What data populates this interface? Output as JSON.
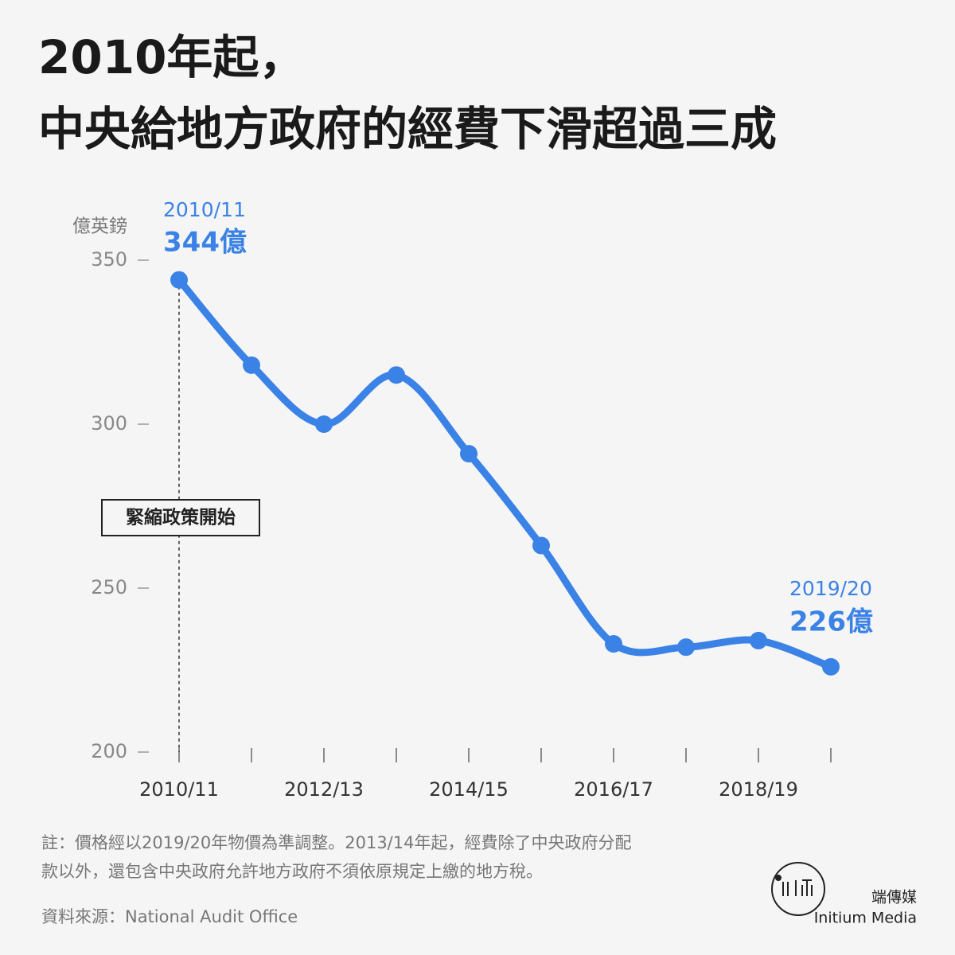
{
  "chart_data": {
    "type": "line",
    "title": [
      "2010年起，",
      "中央給地方政府的經費下滑超過三成"
    ],
    "y_axis_label": "億英鎊",
    "categories": [
      "2010/11",
      null,
      "2012/13",
      null,
      "2014/15",
      null,
      "2016/17",
      null,
      "2018/19",
      null
    ],
    "series": [
      {
        "name": "經費",
        "color": "#3b82e6",
        "values": [
          344,
          318,
          300,
          315,
          291,
          263,
          233,
          232,
          234,
          226
        ],
        "value_labels": [
          "344億",
          null,
          null,
          null,
          null,
          null,
          null,
          null,
          null,
          "226億"
        ],
        "point_labels": [
          "2010/11",
          null,
          null,
          null,
          null,
          null,
          null,
          null,
          null,
          "2019/20"
        ]
      }
    ],
    "ylim": [
      200,
      350
    ],
    "yticks": [
      200,
      250,
      300,
      350
    ],
    "annotation": "緊縮政策開始",
    "notes": [
      "註：價格經以2019/20年物價為準調整。2013/14年起，經費除了中央政府分配",
      "款以外，還包含中央政府允許地方政府不須依原規定上繳的地方稅。"
    ],
    "source": "資料來源：National Audit Office",
    "brand": [
      "端傳媒",
      "Initium Media"
    ]
  }
}
